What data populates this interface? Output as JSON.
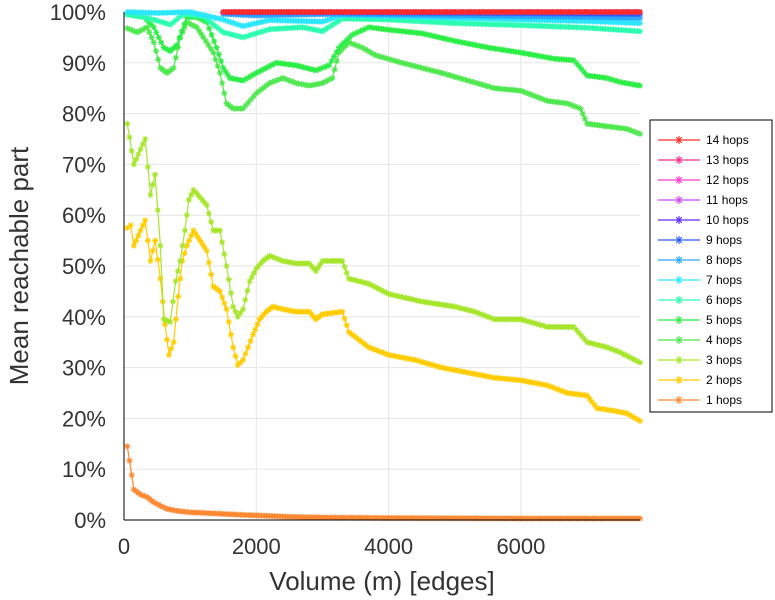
{
  "chart_data": {
    "type": "line",
    "title": "",
    "xlabel": "Volume (m) [edges]",
    "ylabel": "Mean reachable part",
    "xlim": [
      0,
      7800
    ],
    "ylim": [
      0,
      100
    ],
    "x_ticks": [
      0,
      2000,
      4000,
      6000
    ],
    "x_tick_labels": [
      "0",
      "2000",
      "4000",
      "6000"
    ],
    "y_ticks": [
      0,
      10,
      20,
      30,
      40,
      50,
      60,
      70,
      80,
      90,
      100
    ],
    "y_tick_labels": [
      "0%",
      "10%",
      "20%",
      "30%",
      "40%",
      "50%",
      "60%",
      "70%",
      "80%",
      "90%",
      "100%"
    ],
    "grid": true,
    "legend_position": "right",
    "series": [
      {
        "name": "14 hops",
        "color": "#ff2a2a",
        "points": [
          [
            1500,
            100
          ],
          [
            7800,
            100
          ]
        ]
      },
      {
        "name": "13 hops",
        "color": "#ff2a8a",
        "points": [
          [
            1500,
            100
          ],
          [
            7800,
            100
          ]
        ]
      },
      {
        "name": "12 hops",
        "color": "#ff3acc",
        "points": [
          [
            1500,
            100
          ],
          [
            7800,
            100
          ]
        ]
      },
      {
        "name": "11 hops",
        "color": "#cc44ff",
        "points": [
          [
            1500,
            100
          ],
          [
            7800,
            100
          ]
        ]
      },
      {
        "name": "10 hops",
        "color": "#5a2aff",
        "points": [
          [
            1500,
            100
          ],
          [
            7800,
            100
          ]
        ]
      },
      {
        "name": "9 hops",
        "color": "#2a5aff",
        "points": [
          [
            1500,
            99.9
          ],
          [
            3200,
            99.9
          ],
          [
            5000,
            99.8
          ],
          [
            7800,
            99.6
          ]
        ]
      },
      {
        "name": "8 hops",
        "color": "#2aa6ff",
        "points": [
          [
            1500,
            99.6
          ],
          [
            2000,
            99.3
          ],
          [
            3200,
            99.6
          ],
          [
            5000,
            99.3
          ],
          [
            7000,
            99.0
          ],
          [
            7800,
            98.8
          ]
        ]
      },
      {
        "name": "7 hops",
        "color": "#2ae6ff",
        "points": [
          [
            50,
            100
          ],
          [
            500,
            99.8
          ],
          [
            1000,
            100
          ],
          [
            1500,
            98.5
          ],
          [
            1800,
            97.2
          ],
          [
            2200,
            98.4
          ],
          [
            3000,
            98.1
          ],
          [
            3300,
            99.4
          ],
          [
            4500,
            99.0
          ],
          [
            6000,
            98.5
          ],
          [
            7000,
            98.2
          ],
          [
            7800,
            97.8
          ]
        ]
      },
      {
        "name": "6 hops",
        "color": "#2affb0",
        "points": [
          [
            50,
            99.5
          ],
          [
            300,
            99.0
          ],
          [
            500,
            98.3
          ],
          [
            700,
            97.5
          ],
          [
            900,
            99.6
          ],
          [
            1200,
            99.1
          ],
          [
            1500,
            96.0
          ],
          [
            1800,
            95.0
          ],
          [
            2200,
            96.6
          ],
          [
            2700,
            97.0
          ],
          [
            3000,
            96.2
          ],
          [
            3300,
            98.7
          ],
          [
            4000,
            98.5
          ],
          [
            5000,
            97.8
          ],
          [
            6000,
            97.4
          ],
          [
            7000,
            96.9
          ],
          [
            7800,
            96.2
          ]
        ]
      },
      {
        "name": "5 hops",
        "color": "#2aee44",
        "points": [
          [
            50,
            99.5
          ],
          [
            300,
            99.0
          ],
          [
            450,
            97.0
          ],
          [
            600,
            93.0
          ],
          [
            700,
            92.3
          ],
          [
            800,
            93.5
          ],
          [
            950,
            99.0
          ],
          [
            1100,
            99.0
          ],
          [
            1250,
            98.0
          ],
          [
            1400,
            93.0
          ],
          [
            1500,
            89.0
          ],
          [
            1600,
            87.0
          ],
          [
            1800,
            86.5
          ],
          [
            2000,
            88.0
          ],
          [
            2300,
            90.0
          ],
          [
            2600,
            89.5
          ],
          [
            2900,
            88.5
          ],
          [
            3100,
            89.5
          ],
          [
            3250,
            93.0
          ],
          [
            3450,
            95.5
          ],
          [
            3700,
            97.0
          ],
          [
            4000,
            96.5
          ],
          [
            4500,
            95.8
          ],
          [
            5000,
            94.3
          ],
          [
            5500,
            93.0
          ],
          [
            6000,
            92.0
          ],
          [
            6500,
            90.8
          ],
          [
            6800,
            90.5
          ],
          [
            7000,
            87.5
          ],
          [
            7300,
            87.0
          ],
          [
            7500,
            86.2
          ],
          [
            7800,
            85.5
          ]
        ]
      },
      {
        "name": "4 hops",
        "color": "#4de84d",
        "points": [
          [
            50,
            96.8
          ],
          [
            200,
            96.0
          ],
          [
            350,
            97.0
          ],
          [
            450,
            94.0
          ],
          [
            550,
            89.0
          ],
          [
            650,
            88.0
          ],
          [
            750,
            89.0
          ],
          [
            850,
            95.0
          ],
          [
            950,
            98.0
          ],
          [
            1100,
            97.0
          ],
          [
            1200,
            95.0
          ],
          [
            1350,
            92.0
          ],
          [
            1450,
            88.0
          ],
          [
            1550,
            82.0
          ],
          [
            1650,
            81.0
          ],
          [
            1800,
            81.0
          ],
          [
            2000,
            84.0
          ],
          [
            2200,
            86.0
          ],
          [
            2400,
            87.0
          ],
          [
            2600,
            86.0
          ],
          [
            2800,
            85.5
          ],
          [
            3000,
            86.0
          ],
          [
            3150,
            87.0
          ],
          [
            3250,
            92.0
          ],
          [
            3400,
            94.0
          ],
          [
            3600,
            93.0
          ],
          [
            3800,
            91.5
          ],
          [
            4200,
            90.0
          ],
          [
            4800,
            88.0
          ],
          [
            5200,
            86.5
          ],
          [
            5600,
            85.0
          ],
          [
            6000,
            84.5
          ],
          [
            6400,
            82.5
          ],
          [
            6700,
            82.0
          ],
          [
            6900,
            81.0
          ],
          [
            7000,
            78.0
          ],
          [
            7300,
            77.5
          ],
          [
            7600,
            77.0
          ],
          [
            7800,
            76.0
          ]
        ]
      },
      {
        "name": "3 hops",
        "color": "#a6e62a",
        "points": [
          [
            50,
            78.0
          ],
          [
            150,
            70.0
          ],
          [
            250,
            73.0
          ],
          [
            320,
            75.0
          ],
          [
            400,
            64.0
          ],
          [
            470,
            68.0
          ],
          [
            550,
            54.0
          ],
          [
            600,
            39.5
          ],
          [
            700,
            39.0
          ],
          [
            780,
            47.0
          ],
          [
            850,
            51.0
          ],
          [
            920,
            57.0
          ],
          [
            980,
            63.0
          ],
          [
            1050,
            65.0
          ],
          [
            1150,
            63.5
          ],
          [
            1250,
            62.0
          ],
          [
            1350,
            57.0
          ],
          [
            1450,
            57.0
          ],
          [
            1550,
            50.0
          ],
          [
            1650,
            42.0
          ],
          [
            1720,
            40.0
          ],
          [
            1800,
            41.5
          ],
          [
            1900,
            47.0
          ],
          [
            2000,
            49.5
          ],
          [
            2100,
            51.0
          ],
          [
            2200,
            52.0
          ],
          [
            2400,
            51.0
          ],
          [
            2600,
            50.5
          ],
          [
            2800,
            50.5
          ],
          [
            2900,
            49.0
          ],
          [
            3000,
            51.0
          ],
          [
            3300,
            51.0
          ],
          [
            3400,
            47.5
          ],
          [
            3700,
            46.5
          ],
          [
            4000,
            44.5
          ],
          [
            4500,
            43.0
          ],
          [
            5000,
            42.0
          ],
          [
            5300,
            41.0
          ],
          [
            5600,
            39.5
          ],
          [
            6000,
            39.5
          ],
          [
            6400,
            38.0
          ],
          [
            6800,
            38.0
          ],
          [
            7000,
            35.0
          ],
          [
            7300,
            34.0
          ],
          [
            7500,
            33.0
          ],
          [
            7800,
            31.0
          ]
        ]
      },
      {
        "name": "2 hops",
        "color": "#ffcc00",
        "points": [
          [
            50,
            57.5
          ],
          [
            100,
            58.0
          ],
          [
            150,
            54.0
          ],
          [
            250,
            57.0
          ],
          [
            320,
            59.0
          ],
          [
            400,
            51.0
          ],
          [
            470,
            55.0
          ],
          [
            550,
            47.5
          ],
          [
            620,
            38.5
          ],
          [
            680,
            32.5
          ],
          [
            750,
            35.0
          ],
          [
            820,
            44.0
          ],
          [
            880,
            51.0
          ],
          [
            950,
            54.0
          ],
          [
            1050,
            57.0
          ],
          [
            1150,
            55.0
          ],
          [
            1250,
            53.0
          ],
          [
            1350,
            46.0
          ],
          [
            1450,
            45.0
          ],
          [
            1550,
            41.5
          ],
          [
            1650,
            34.0
          ],
          [
            1720,
            30.5
          ],
          [
            1800,
            31.5
          ],
          [
            1950,
            36.5
          ],
          [
            2050,
            39.5
          ],
          [
            2150,
            41.0
          ],
          [
            2250,
            42.0
          ],
          [
            2400,
            41.5
          ],
          [
            2600,
            41.0
          ],
          [
            2800,
            41.0
          ],
          [
            2900,
            39.5
          ],
          [
            3000,
            40.5
          ],
          [
            3300,
            41.0
          ],
          [
            3400,
            37.0
          ],
          [
            3700,
            34.0
          ],
          [
            4000,
            32.5
          ],
          [
            4400,
            31.5
          ],
          [
            4800,
            30.0
          ],
          [
            5200,
            29.0
          ],
          [
            5600,
            28.0
          ],
          [
            6000,
            27.5
          ],
          [
            6400,
            26.5
          ],
          [
            6700,
            25.0
          ],
          [
            7000,
            24.5
          ],
          [
            7150,
            22.0
          ],
          [
            7400,
            21.5
          ],
          [
            7600,
            21.0
          ],
          [
            7800,
            19.5
          ]
        ]
      },
      {
        "name": "1 hops",
        "color": "#ff8833",
        "points": [
          [
            50,
            14.5
          ],
          [
            150,
            6.0
          ],
          [
            250,
            5.0
          ],
          [
            350,
            4.5
          ],
          [
            450,
            3.5
          ],
          [
            550,
            2.8
          ],
          [
            650,
            2.2
          ],
          [
            800,
            1.8
          ],
          [
            1000,
            1.5
          ],
          [
            1200,
            1.4
          ],
          [
            1500,
            1.2
          ],
          [
            1800,
            1.0
          ],
          [
            2200,
            0.8
          ],
          [
            2600,
            0.6
          ],
          [
            3000,
            0.5
          ],
          [
            4000,
            0.4
          ],
          [
            5000,
            0.35
          ],
          [
            6000,
            0.3
          ],
          [
            7000,
            0.3
          ],
          [
            7800,
            0.3
          ]
        ]
      }
    ]
  }
}
